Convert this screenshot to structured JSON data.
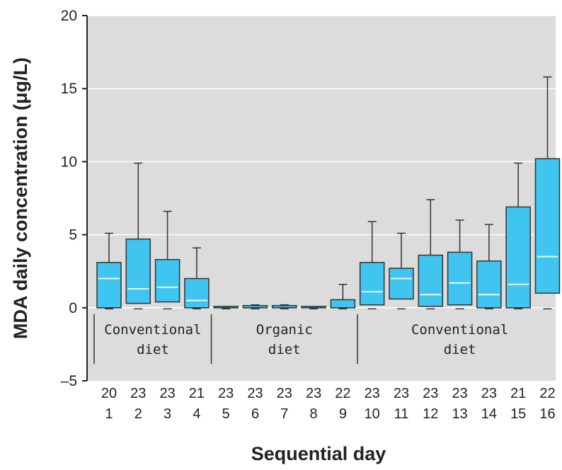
{
  "chart_data": {
    "type": "box",
    "ylabel": "MDA daily concentration (μg/L)",
    "xlabel": "Sequential day",
    "ylim": [
      -5,
      20
    ],
    "yticks": [
      -5,
      0,
      5,
      10,
      15,
      20
    ],
    "grid": true,
    "colors": {
      "box_fill": "#40c4f0",
      "median": "#e6f7fd",
      "plot_bg": "#dcdcdc",
      "grid": "#ffffff"
    },
    "groups": [
      {
        "label_line1": "Conventional",
        "label_line2": "diet",
        "days": [
          1,
          4
        ]
      },
      {
        "label_line1": "Organic",
        "label_line2": "diet",
        "days": [
          5,
          9
        ]
      },
      {
        "label_line1": "Conventional",
        "label_line2": "diet",
        "days": [
          10,
          16
        ]
      }
    ],
    "boxes": [
      {
        "day": "1",
        "n": "20",
        "min": 0,
        "q1": 0,
        "median": 2.0,
        "q3": 3.1,
        "max": 5.1
      },
      {
        "day": "2",
        "n": "23",
        "min": 0,
        "q1": 0.3,
        "median": 1.3,
        "q3": 4.7,
        "max": 9.9
      },
      {
        "day": "3",
        "n": "23",
        "min": 0,
        "q1": 0.4,
        "median": 1.4,
        "q3": 3.3,
        "max": 6.6
      },
      {
        "day": "4",
        "n": "21",
        "min": 0,
        "q1": 0,
        "median": 0.5,
        "q3": 2.0,
        "max": 4.1
      },
      {
        "day": "5",
        "n": "23",
        "min": 0,
        "q1": 0,
        "median": 0,
        "q3": 0.05,
        "max": 0.05
      },
      {
        "day": "6",
        "n": "23",
        "min": 0,
        "q1": 0,
        "median": 0.05,
        "q3": 0.15,
        "max": 0.2
      },
      {
        "day": "7",
        "n": "23",
        "min": 0,
        "q1": 0,
        "median": 0.05,
        "q3": 0.15,
        "max": 0.2
      },
      {
        "day": "8",
        "n": "23",
        "min": 0,
        "q1": 0,
        "median": 0,
        "q3": 0.05,
        "max": 0.05
      },
      {
        "day": "9",
        "n": "22",
        "min": 0,
        "q1": 0,
        "median": 0.05,
        "q3": 0.55,
        "max": 1.6
      },
      {
        "day": "10",
        "n": "23",
        "min": 0,
        "q1": 0.2,
        "median": 1.1,
        "q3": 3.1,
        "max": 5.9
      },
      {
        "day": "11",
        "n": "23",
        "min": 0,
        "q1": 0.6,
        "median": 2.0,
        "q3": 2.7,
        "max": 5.1
      },
      {
        "day": "12",
        "n": "23",
        "min": 0,
        "q1": 0.1,
        "median": 0.9,
        "q3": 3.6,
        "max": 7.4
      },
      {
        "day": "13",
        "n": "23",
        "min": 0,
        "q1": 0.2,
        "median": 1.7,
        "q3": 3.8,
        "max": 6.0
      },
      {
        "day": "14",
        "n": "23",
        "min": 0,
        "q1": 0,
        "median": 0.9,
        "q3": 3.2,
        "max": 5.7
      },
      {
        "day": "15",
        "n": "21",
        "min": 0,
        "q1": 0,
        "median": 1.6,
        "q3": 6.9,
        "max": 9.9
      },
      {
        "day": "16",
        "n": "22",
        "min": 0,
        "q1": 1.0,
        "median": 3.5,
        "q3": 10.2,
        "max": 15.8
      }
    ]
  }
}
